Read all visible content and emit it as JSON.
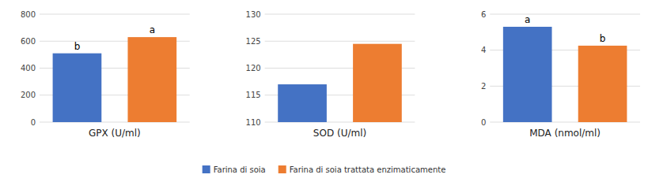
{
  "chart_data": [
    {
      "type": "bar",
      "title": "GPX (U/ml)",
      "categories": [
        null
      ],
      "series": [
        {
          "name": "Farina di soia",
          "color": "#4472C4",
          "values": [
            510
          ],
          "annotations": [
            "b"
          ]
        },
        {
          "name": "Farina di soia trattata enzimaticamente",
          "color": "#ED7D31",
          "values": [
            630
          ],
          "annotations": [
            "a"
          ]
        }
      ],
      "ylim": [
        0,
        800
      ],
      "yticks": [
        0,
        200,
        400,
        600,
        800
      ],
      "grid": true
    },
    {
      "type": "bar",
      "title": "SOD (U/ml)",
      "categories": [
        null
      ],
      "series": [
        {
          "name": "Farina di soia",
          "color": "#4472C4",
          "values": [
            117
          ]
        },
        {
          "name": "Farina di soia trattata enzimaticamente",
          "color": "#ED7D31",
          "values": [
            124.5
          ]
        }
      ],
      "ylim": [
        110,
        130
      ],
      "yticks": [
        110,
        115,
        120,
        125,
        130
      ],
      "grid": true,
      "legend": "bottom"
    },
    {
      "type": "bar",
      "title": "MDA (nmol/ml)",
      "categories": [
        null
      ],
      "series": [
        {
          "name": "Farina di soia",
          "color": "#4472C4",
          "values": [
            5.3
          ],
          "annotations": [
            "a"
          ]
        },
        {
          "name": "Farina di soia trattata enzimaticamente",
          "color": "#ED7D31",
          "values": [
            4.25
          ],
          "annotations": [
            "b"
          ]
        }
      ],
      "ylim": [
        0,
        6
      ],
      "yticks": [
        0,
        2,
        4,
        6
      ],
      "grid": true
    }
  ]
}
